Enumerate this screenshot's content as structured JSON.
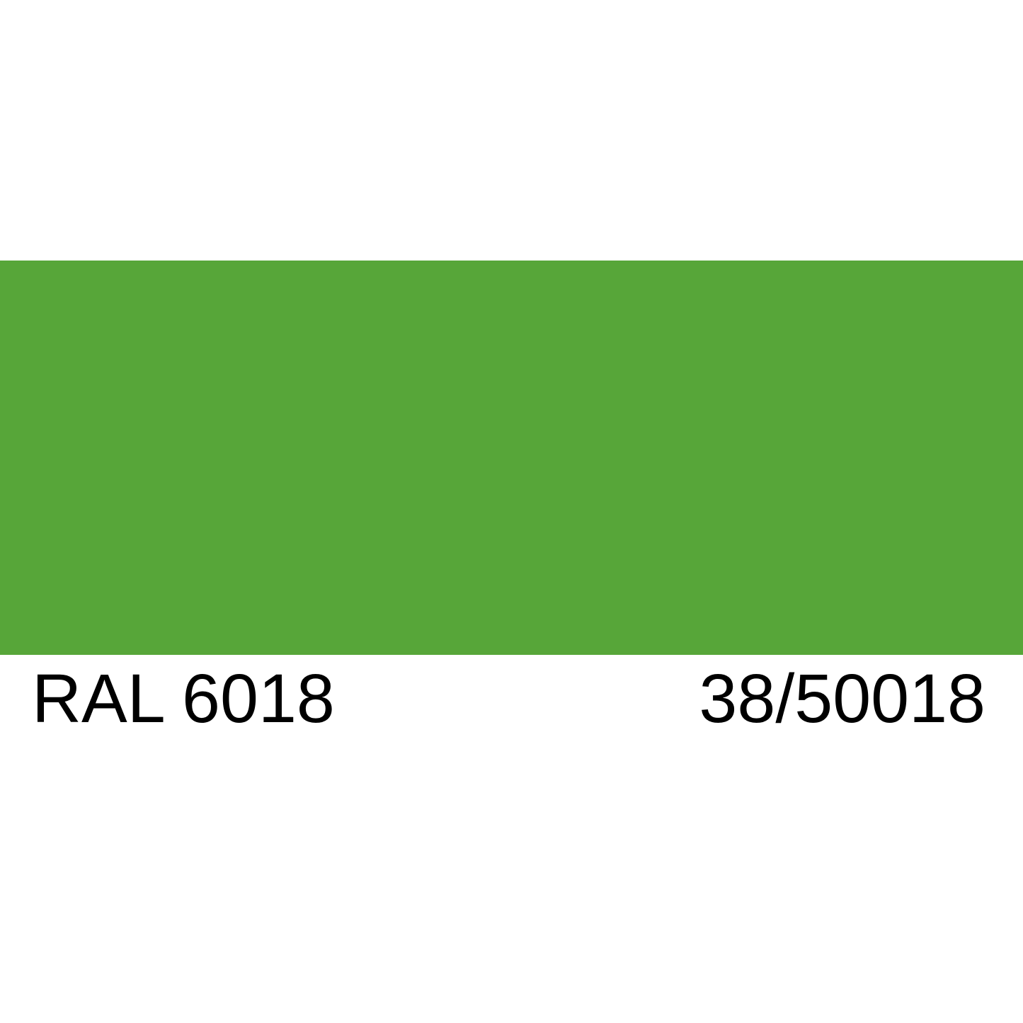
{
  "swatch": {
    "color_name": "RAL 6018",
    "color_code": "38/50018",
    "color_hex": "#57A639"
  },
  "colors": {
    "background": "#FFFFFF",
    "text": "#000000"
  }
}
